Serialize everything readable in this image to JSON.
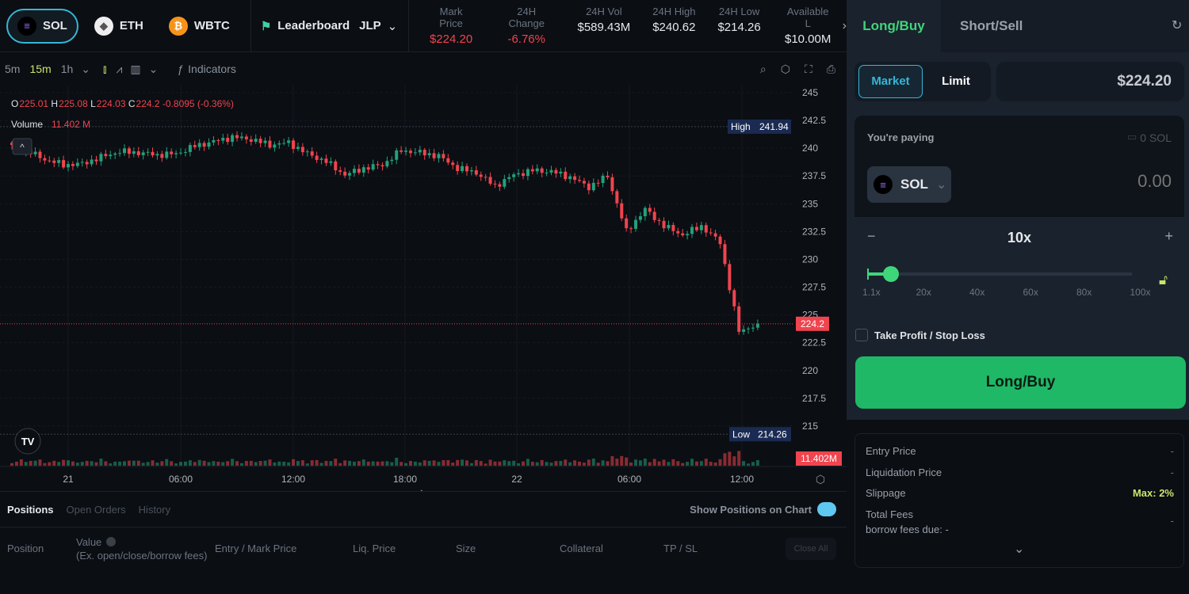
{
  "header": {
    "coins": [
      {
        "label": "SOL",
        "active": true
      },
      {
        "label": "ETH",
        "active": false
      },
      {
        "label": "WBTC",
        "active": false
      }
    ],
    "leaderboard": "Leaderboard",
    "pool": "JLP",
    "stats": [
      {
        "label": "Mark Price",
        "value": "$224.20",
        "color": "#f0444e"
      },
      {
        "label": "24H Change",
        "value": "-6.76%",
        "color": "#f0444e"
      },
      {
        "label": "24H Vol",
        "value": "$589.43M",
        "color": "#e6e8eb"
      },
      {
        "label": "24H High",
        "value": "$240.62",
        "color": "#e6e8eb"
      },
      {
        "label": "24H Low",
        "value": "$214.26",
        "color": "#e6e8eb"
      },
      {
        "label": "Available L",
        "value": "$10.00M",
        "color": "#e6e8eb"
      }
    ]
  },
  "toolbar": {
    "intervals": [
      "5m",
      "15m",
      "1h"
    ],
    "active_interval": "15m",
    "indicators": "Indicators"
  },
  "chart_data": {
    "type": "candlestick",
    "interval": "15m",
    "ohlc_legend": {
      "o": "225.01",
      "h": "225.08",
      "l": "224.03",
      "c": "224.2",
      "change": "-0.8095 (-0.36%)"
    },
    "volume_legend": {
      "label": "Volume",
      "value": "11.402 M"
    },
    "y_ticks": [
      "245",
      "242.5",
      "240",
      "237.5",
      "235",
      "232.5",
      "230",
      "227.5",
      "225",
      "222.5",
      "220",
      "217.5",
      "215"
    ],
    "ylim": [
      212.5,
      245.5
    ],
    "x_ticks": [
      "21",
      "06:00",
      "12:00",
      "18:00",
      "22",
      "06:00",
      "12:00"
    ],
    "high": {
      "label": "High",
      "value": "241.94"
    },
    "low": {
      "label": "Low",
      "value": "214.26"
    },
    "last_price": "224.2",
    "last_volume": "11.402M",
    "hourly_closes": [
      240.3,
      239.8,
      239.0,
      238.5,
      238.6,
      239.2,
      239.7,
      239.6,
      239.4,
      239.5,
      240.2,
      240.6,
      241.0,
      240.8,
      240.3,
      240.5,
      239.5,
      238.8,
      237.6,
      238.2,
      238.5,
      239.8,
      239.6,
      239.3,
      238.2,
      237.8,
      236.6,
      237.6,
      238.0,
      237.9,
      237.4,
      236.5,
      237.5,
      232.5,
      234.5,
      233.0,
      232.2,
      233.0,
      231.5,
      223.5,
      224.2
    ],
    "colors": {
      "up": "#22a17a",
      "down": "#f0444e"
    }
  },
  "positions": {
    "tabs": [
      "Positions",
      "Open Orders",
      "History"
    ],
    "show_on_chart": "Show Positions on Chart",
    "columns": [
      "Position",
      "Value",
      "Entry / Mark Price",
      "Liq. Price",
      "Size",
      "Collateral",
      "TP / SL"
    ],
    "value_sub": "(Ex. open/close/borrow fees)",
    "close_all": "Close All"
  },
  "trade": {
    "tabs": [
      "Long/Buy",
      "Short/Sell"
    ],
    "order_types": [
      "Market",
      "Limit"
    ],
    "price": "$224.20",
    "paying_label": "You're paying",
    "balance": "0 SOL",
    "token": "SOL",
    "amount_placeholder": "0.00",
    "leverage": "10x",
    "leverage_value": 10,
    "leverage_marks": [
      "1.1x",
      "20x",
      "40x",
      "60x",
      "80x",
      "100x"
    ],
    "tpsl": "Take Profit / Stop Loss",
    "submit": "Long/Buy",
    "info": [
      {
        "label": "Entry Price",
        "value": "-"
      },
      {
        "label": "Liquidation Price",
        "value": "-"
      },
      {
        "label": "Slippage",
        "value": "Max: 2%"
      },
      {
        "label": "Total Fees",
        "value": "-"
      }
    ],
    "borrow_fees": "borrow fees due: -"
  }
}
